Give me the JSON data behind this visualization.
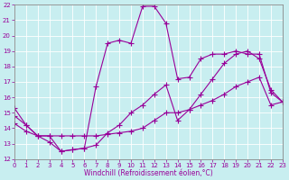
{
  "xlabel": "Windchill (Refroidissement éolien,°C)",
  "xlim": [
    0,
    23
  ],
  "ylim": [
    12,
    22
  ],
  "xticks": [
    0,
    1,
    2,
    3,
    4,
    5,
    6,
    7,
    8,
    9,
    10,
    11,
    12,
    13,
    14,
    15,
    16,
    17,
    18,
    19,
    20,
    21,
    22,
    23
  ],
  "yticks": [
    12,
    13,
    14,
    15,
    16,
    17,
    18,
    19,
    20,
    21,
    22
  ],
  "background_color": "#c8eef0",
  "grid_color": "#b0d8dc",
  "line_color": "#990099",
  "series1_x": [
    0,
    1,
    2,
    3,
    4,
    5,
    6,
    7,
    8,
    9,
    10,
    11,
    12,
    13,
    14,
    15,
    16,
    17,
    18,
    19,
    20,
    21,
    22,
    23
  ],
  "series1_y": [
    15.3,
    14.2,
    13.5,
    13.1,
    12.5,
    12.6,
    12.7,
    16.7,
    19.5,
    19.7,
    19.5,
    21.9,
    21.9,
    20.8,
    17.2,
    17.3,
    18.5,
    18.8,
    18.8,
    19.0,
    18.8,
    18.8,
    16.3,
    15.7
  ],
  "series2_x": [
    0,
    1,
    2,
    3,
    4,
    5,
    6,
    7,
    8,
    9,
    10,
    11,
    12,
    13,
    14,
    15,
    16,
    17,
    18,
    19,
    20,
    21,
    22,
    23
  ],
  "series2_y": [
    14.8,
    14.2,
    13.5,
    13.5,
    12.5,
    12.6,
    12.7,
    12.9,
    13.7,
    14.2,
    15.0,
    15.5,
    16.2,
    16.8,
    14.5,
    15.2,
    16.2,
    17.2,
    18.2,
    18.8,
    19.0,
    18.5,
    16.5,
    15.7
  ],
  "series3_x": [
    0,
    1,
    2,
    3,
    4,
    5,
    6,
    7,
    8,
    9,
    10,
    11,
    12,
    13,
    14,
    15,
    16,
    17,
    18,
    19,
    20,
    21,
    22,
    23
  ],
  "series3_y": [
    14.3,
    13.8,
    13.5,
    13.5,
    13.5,
    13.5,
    13.5,
    13.5,
    13.6,
    13.7,
    13.8,
    14.0,
    14.5,
    15.0,
    15.0,
    15.2,
    15.5,
    15.8,
    16.2,
    16.7,
    17.0,
    17.3,
    15.5,
    15.7
  ]
}
